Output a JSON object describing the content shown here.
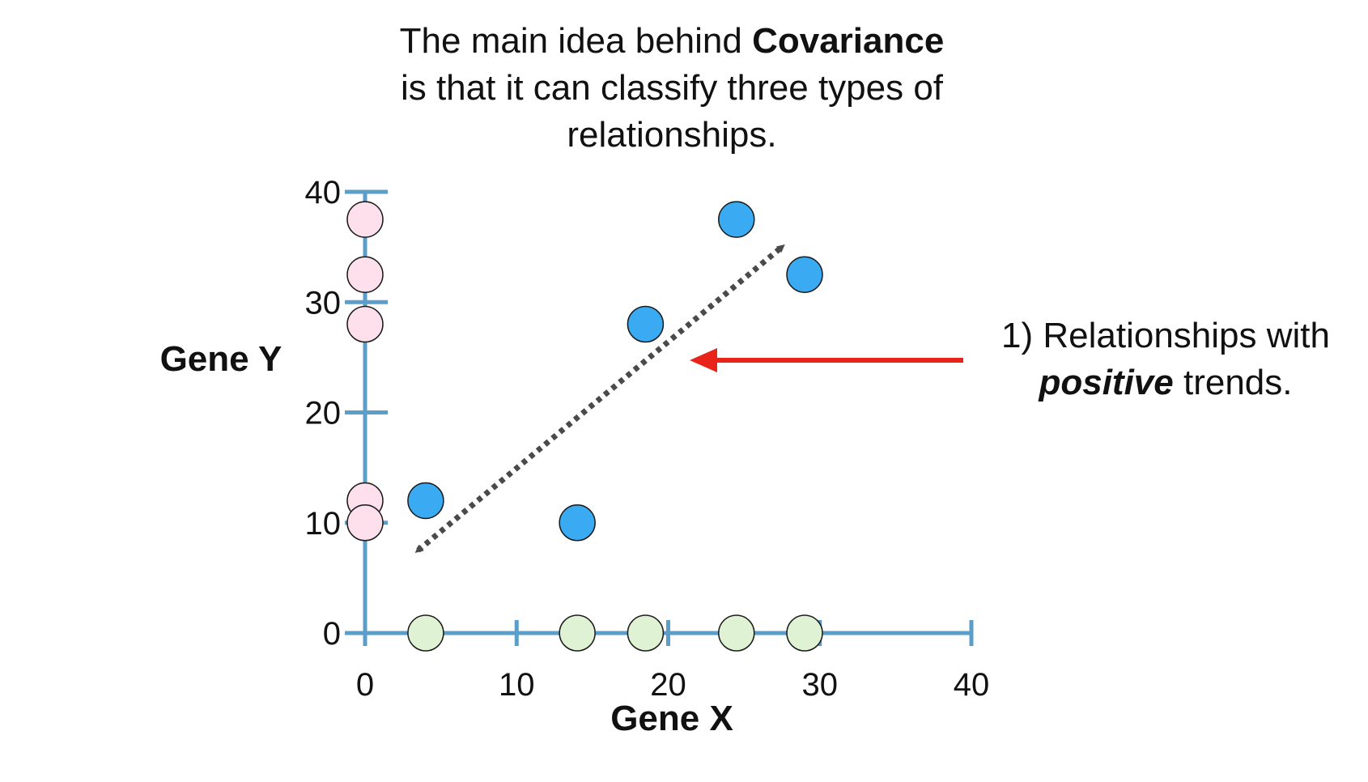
{
  "title": {
    "line1_prefix": "The main idea behind ",
    "line1_bold": "Covariance",
    "line2": "is that it can classify three types of",
    "line3": "relationships."
  },
  "annotation": {
    "line1": "1) Relationships with",
    "line2_em": "positive",
    "line2_rest": " trends."
  },
  "chart_data": {
    "type": "scatter",
    "xlabel": "Gene X",
    "ylabel": "Gene Y",
    "xlim": [
      0,
      40
    ],
    "ylim": [
      0,
      40
    ],
    "xticks": [
      0,
      10,
      20,
      30,
      40
    ],
    "yticks": [
      0,
      10,
      20,
      30,
      40
    ],
    "grid": false,
    "series": [
      {
        "role": "paired",
        "color": "#3aabf2",
        "points": [
          [
            4,
            12
          ],
          [
            14,
            10
          ],
          [
            18.5,
            28
          ],
          [
            24.5,
            37.5
          ],
          [
            29,
            32.5
          ]
        ]
      },
      {
        "role": "y-axis projection",
        "color": "#fde0ec",
        "points": [
          [
            0,
            37.5
          ],
          [
            0,
            32.5
          ],
          [
            0,
            28
          ],
          [
            0,
            12
          ],
          [
            0,
            10
          ]
        ]
      },
      {
        "role": "x-axis projection",
        "color": "#dff2d3",
        "points": [
          [
            4,
            0
          ],
          [
            14,
            0
          ],
          [
            18.5,
            0
          ],
          [
            24.5,
            0
          ],
          [
            29,
            0
          ]
        ]
      }
    ],
    "trend_arrow": {
      "from": [
        3.5,
        7.5
      ],
      "to": [
        27.5,
        35
      ]
    },
    "pointer_arrow": {
      "color": "#e8241a"
    },
    "axis_color": "#5b9ec9"
  }
}
